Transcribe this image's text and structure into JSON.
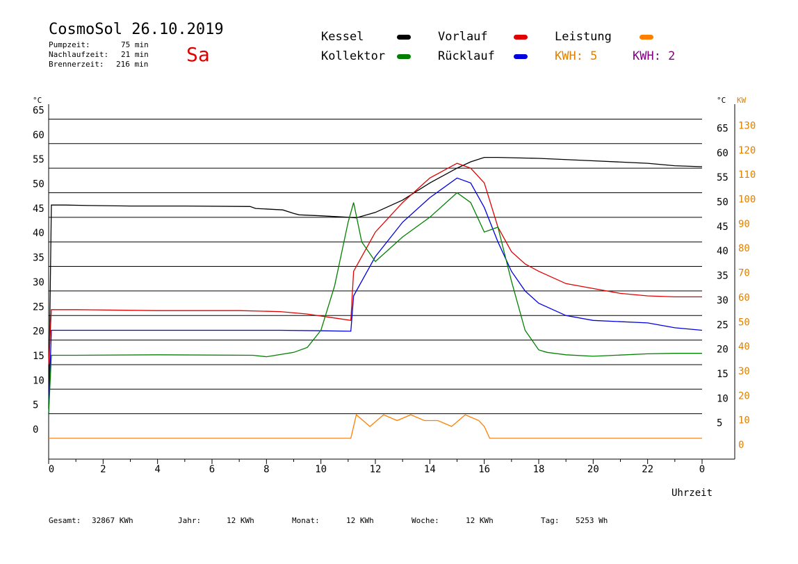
{
  "header": {
    "title": "CosmoSol 26.10.2019",
    "day": "Sa",
    "stats": [
      {
        "label": "Pumpzeit:",
        "value": "75 min"
      },
      {
        "label": "Nachlaufzeit:",
        "value": "21 min"
      },
      {
        "label": "Brennerzeit:",
        "value": "216 min"
      }
    ]
  },
  "legend": {
    "items": [
      {
        "label": "Kessel",
        "color": "#000000"
      },
      {
        "label": "Vorlauf",
        "color": "#e00000"
      },
      {
        "label": "Leistung",
        "color": "#ff8000"
      },
      {
        "label": "Kollektor",
        "color": "#008000"
      },
      {
        "label": "Rücklauf",
        "color": "#0000e0"
      }
    ],
    "kwh_orange": "KWH: 5",
    "kwh_purple": "KWH: 2",
    "kwh_orange_color": "#e08000",
    "kwh_purple_color": "#800080"
  },
  "footer": {
    "gesamt_label": "Gesamt:",
    "gesamt_value": "32867 KWh",
    "jahr_label": "Jahr:",
    "jahr_value": "12 KWh",
    "monat_label": "Monat:",
    "monat_value": "12 KWh",
    "woche_label": "Woche:",
    "woche_value": "12 KWh",
    "tag_label": "Tag:",
    "tag_value": "5253 Wh"
  },
  "chart_data": {
    "type": "line",
    "xlabel": "Uhrzeit",
    "ylabel_left": "°C",
    "ylabel_right_temp": "°C",
    "ylabel_right_power": "KW",
    "x_ticks": [
      "0",
      "2",
      "4",
      "6",
      "8",
      "10",
      "12",
      "14",
      "16",
      "18",
      "20",
      "22",
      "0"
    ],
    "y_ticks": [
      0,
      5,
      10,
      15,
      20,
      25,
      30,
      35,
      40,
      45,
      50,
      55,
      60,
      65
    ],
    "y2_ticks": [
      0,
      10,
      20,
      30,
      40,
      50,
      60,
      70,
      80,
      90,
      100,
      110,
      120,
      130
    ],
    "xlim": [
      0,
      24
    ],
    "ylim": [
      0,
      65
    ],
    "grid": true,
    "series": [
      {
        "name": "Kessel",
        "color": "#000000",
        "x": [
          0,
          0.1,
          0.6,
          1.5,
          3,
          5,
          7.4,
          7.6,
          8.6,
          9,
          9.2,
          10,
          11,
          11.3,
          12,
          13,
          14,
          15,
          15.5,
          16,
          16.5,
          18,
          20,
          22,
          23,
          24
        ],
        "y": [
          6,
          47.5,
          47.5,
          47.4,
          47.3,
          47.3,
          47.2,
          46.8,
          46.5,
          45.8,
          45.5,
          45.3,
          45.0,
          44.9,
          46.0,
          48.5,
          52,
          55,
          56.3,
          57.2,
          57.2,
          57.0,
          56.5,
          56.0,
          55.5,
          55.3
        ]
      },
      {
        "name": "Vorlauf",
        "color": "#e00000",
        "x": [
          0,
          0.1,
          1,
          4,
          7,
          8.5,
          9.5,
          10.5,
          11.1,
          11.2,
          11.5,
          12,
          13,
          14,
          15,
          15.5,
          16,
          16.5,
          17,
          17.5,
          18,
          19,
          20,
          21,
          22,
          23,
          24
        ],
        "y": [
          15,
          26.2,
          26.2,
          26.0,
          26.0,
          25.8,
          25.3,
          24.5,
          24.0,
          34,
          37,
          42,
          48,
          53,
          56,
          55,
          52,
          43,
          38,
          35.5,
          34,
          31.5,
          30.5,
          29.5,
          29,
          28.8,
          28.8
        ]
      },
      {
        "name": "Rücklauf",
        "color": "#0000e0",
        "x": [
          0,
          0.1,
          1,
          5,
          8.5,
          10,
          11.1,
          11.2,
          11.5,
          12,
          13,
          14,
          15,
          15.5,
          16,
          16.5,
          17,
          17.5,
          18,
          19,
          20,
          22,
          23,
          24
        ],
        "y": [
          5,
          22.0,
          22.0,
          22.0,
          22.0,
          21.9,
          21.8,
          29,
          32,
          37,
          44,
          49,
          53,
          52,
          47,
          40,
          34,
          30,
          27.5,
          25,
          24,
          23.5,
          22.5,
          22.0
        ]
      },
      {
        "name": "Kollektor",
        "color": "#008000",
        "x": [
          0,
          0.1,
          1,
          4,
          7.5,
          8,
          9,
          9.5,
          10,
          10.5,
          11,
          11.2,
          11.5,
          12,
          13,
          14,
          15,
          15.5,
          16,
          16.5,
          17,
          17.5,
          18,
          18.3,
          19,
          20,
          22,
          23,
          24
        ],
        "y": [
          5,
          16.9,
          16.9,
          17.0,
          16.9,
          16.6,
          17.5,
          18.5,
          22,
          31,
          44,
          48,
          40,
          36,
          41,
          45,
          50,
          48,
          42,
          43,
          32,
          22,
          18,
          17.5,
          17.0,
          16.7,
          17.2,
          17.3,
          17.3
        ]
      },
      {
        "name": "Leistung",
        "color": "#ff8000",
        "x": [
          0,
          11.1,
          11.3,
          11.8,
          12.3,
          12.8,
          13.3,
          13.8,
          14.3,
          14.8,
          15.3,
          15.8,
          16.0,
          16.2,
          24
        ],
        "y": [
          0,
          0,
          4,
          2,
          4,
          3,
          4,
          3,
          3,
          2,
          4,
          3,
          2,
          0,
          0
        ]
      }
    ]
  }
}
